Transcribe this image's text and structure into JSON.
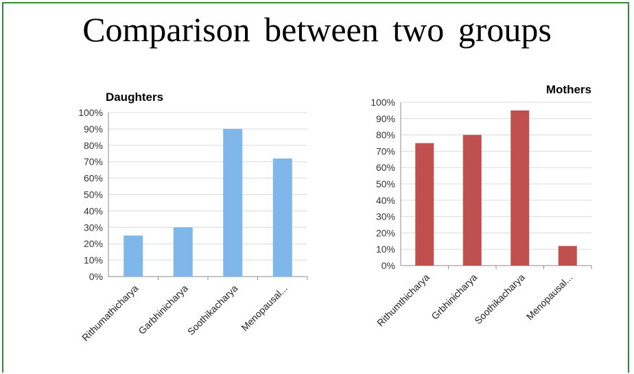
{
  "slide": {
    "title": "Comparison between two groups"
  },
  "chart_data": [
    {
      "type": "bar",
      "title": "Daughters",
      "categories": [
        "Rithumathicharya",
        "Garbhinicharya",
        "Soothikacharya",
        "Menopausal..."
      ],
      "values": [
        25,
        30,
        90,
        72
      ],
      "ylim": [
        0,
        100
      ],
      "yticks": [
        "0%",
        "10%",
        "20%",
        "30%",
        "40%",
        "50%",
        "60%",
        "70%",
        "80%",
        "90%",
        "100%"
      ],
      "grid": true,
      "color": "#7fb7ea",
      "xlabel": "",
      "ylabel": ""
    },
    {
      "type": "bar",
      "title": "Mothers",
      "categories": [
        "Rithumthicharya",
        "Grbhinicharya",
        "Soothikacharya",
        "Menopausal..."
      ],
      "values": [
        75,
        80,
        95,
        12
      ],
      "ylim": [
        0,
        100
      ],
      "yticks": [
        "0%",
        "10%",
        "20%",
        "30%",
        "40%",
        "50%",
        "60%",
        "70%",
        "80%",
        "90%",
        "100%"
      ],
      "grid": true,
      "color": "#c0504d",
      "xlabel": "",
      "ylabel": ""
    }
  ]
}
